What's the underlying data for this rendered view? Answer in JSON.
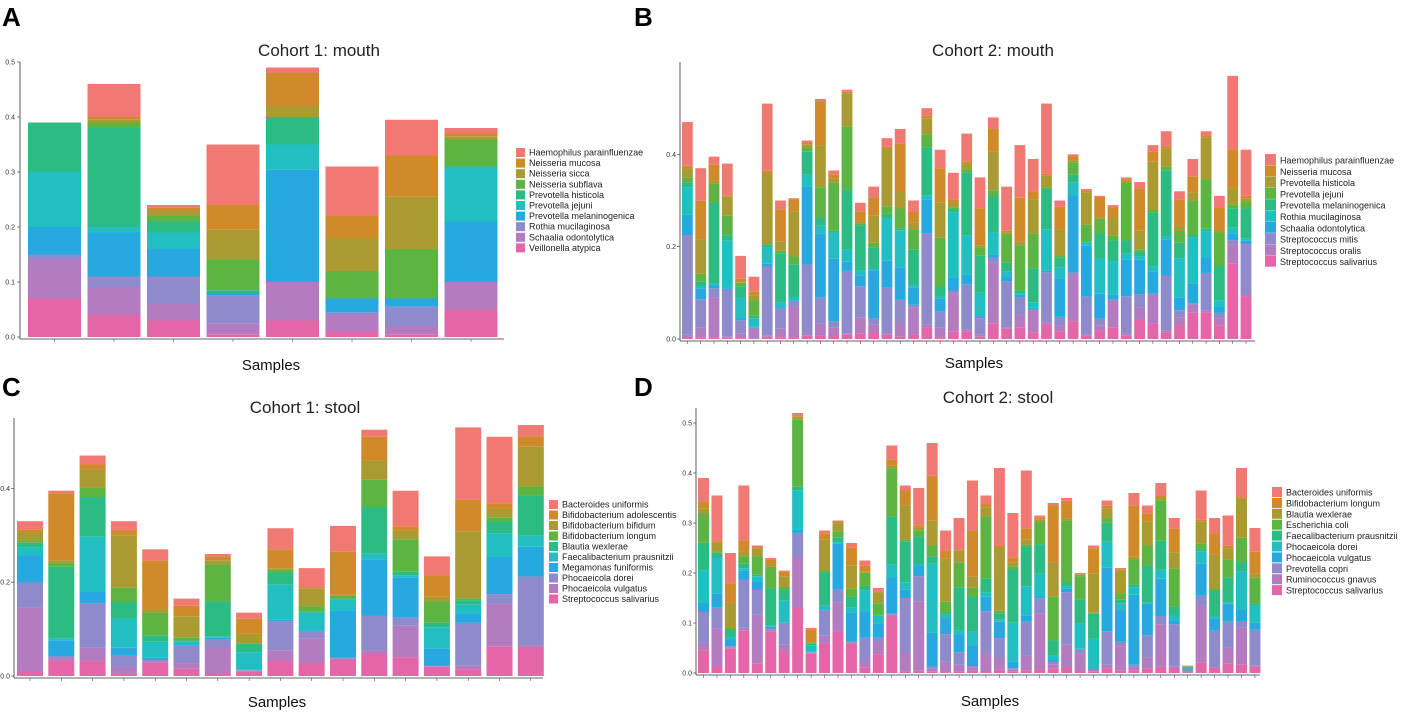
{
  "colors": {
    "c_red": "#F07A73",
    "c_orange": "#D08A2A",
    "c_olive": "#A99A32",
    "c_green": "#5CB443",
    "c_teal": "#2DBB84",
    "c_cyan": "#22BFC2",
    "c_blue": "#27A8DF",
    "c_purple": "#8F8ACB",
    "c_mauve": "#B37CC0",
    "c_pink": "#E466A9"
  },
  "chart_data": [
    {
      "panel": "A",
      "type": "stacked-bar",
      "title": "Cohort  1: mouth",
      "xlabel": "Samples",
      "ylim": [
        0,
        0.5
      ],
      "yticks": [
        0.0,
        0.1,
        0.2,
        0.3,
        0.4,
        0.5
      ],
      "ytick_labels": [
        "0.0",
        "0.1",
        "0.2",
        "0.3",
        "0.4",
        "0.5"
      ],
      "legend": [
        "Haemophilus parainfluenzae",
        "Neisseria mucosa",
        "Neisseria sicca",
        "Neisseria subflava",
        "Prevotella histicola",
        "Prevotella jejuni",
        "Prevotella melaninogenica",
        "Rothia mucilaginosa",
        "Schaalia odontolytica",
        "Veillonella atypica"
      ],
      "legend_colors": [
        "#F07A73",
        "#D08A2A",
        "#A99A32",
        "#5CB443",
        "#2DBB84",
        "#22BFC2",
        "#27A8DF",
        "#8F8ACB",
        "#B37CC0",
        "#E466A9"
      ],
      "series_order": [
        "Veillonella atypica",
        "Schaalia odontolytica",
        "Rothia mucilaginosa",
        "Prevotella melaninogenica",
        "Prevotella jejuni",
        "Prevotella histicola",
        "Neisseria subflava",
        "Neisseria sicca",
        "Neisseria mucosa",
        "Haemophilus parainfluenzae"
      ],
      "series_colors": [
        "#E466A9",
        "#B37CC0",
        "#8F8ACB",
        "#27A8DF",
        "#22BFC2",
        "#2DBB84",
        "#5CB443",
        "#A99A32",
        "#D08A2A",
        "#F07A73"
      ],
      "bars": [
        [
          0.07,
          0.07,
          0.01,
          0.05,
          0.1,
          0.09,
          0,
          0,
          0,
          0
        ],
        [
          0.04,
          0.05,
          0.02,
          0.08,
          0.01,
          0.18,
          0.01,
          0.005,
          0.005,
          0.06
        ],
        [
          0.03,
          0.03,
          0.05,
          0.05,
          0.03,
          0.02,
          0.01,
          0.01,
          0.005,
          0.005
        ],
        [
          0.005,
          0.02,
          0.05,
          0.005,
          0,
          0.005,
          0.055,
          0.055,
          0.045,
          0.11
        ],
        [
          0.03,
          0.07,
          0,
          0.205,
          0.045,
          0.05,
          0,
          0.02,
          0.06,
          0.01
        ],
        [
          0.01,
          0.03,
          0.005,
          0.025,
          0,
          0,
          0.05,
          0.06,
          0.04,
          0.09
        ],
        [
          0.005,
          0.015,
          0.035,
          0.015,
          0,
          0,
          0.09,
          0.095,
          0.075,
          0.065
        ],
        [
          0.05,
          0.05,
          0,
          0.11,
          0.1,
          0,
          0.05,
          0.005,
          0.005,
          0.01
        ]
      ]
    },
    {
      "panel": "B",
      "type": "stacked-bar",
      "title": "Cohort  2: mouth",
      "xlabel": "Samples",
      "ylim": [
        0,
        0.6
      ],
      "yticks": [
        0.0,
        0.2,
        0.4
      ],
      "ytick_labels": [
        "0.0",
        "0.2",
        "0.4"
      ],
      "legend": [
        "Haemophilus parainfluenzae",
        "Neisseria mucosa",
        "Prevotella histicola",
        "Prevotella jejuni",
        "Prevotella melaninogenica",
        "Rothia mucilaginosa",
        "Schaalia odontolytica",
        "Streptococcus mitis",
        "Streptococcus oralis",
        "Streptococcus salivarius"
      ],
      "legend_colors": [
        "#F07A73",
        "#D08A2A",
        "#A99A32",
        "#5CB443",
        "#2DBB84",
        "#22BFC2",
        "#27A8DF",
        "#8F8ACB",
        "#B37CC0",
        "#E466A9"
      ],
      "series_colors": [
        "#E466A9",
        "#B37CC0",
        "#8F8ACB",
        "#27A8DF",
        "#22BFC2",
        "#2DBB84",
        "#5CB443",
        "#A99A32",
        "#D08A2A",
        "#F07A73"
      ],
      "totals": [
        0.47,
        0.37,
        0.395,
        0.38,
        0.18,
        0.135,
        0.51,
        0.3,
        0.305,
        0.43,
        0.52,
        0.365,
        0.54,
        0.295,
        0.33,
        0.435,
        0.455,
        0.3,
        0.5,
        0.41,
        0.36,
        0.445,
        0.35,
        0.48,
        0.33,
        0.42,
        0.39,
        0.51,
        0.3,
        0.4,
        0.325,
        0.31,
        0.29,
        0.35,
        0.34,
        0.42,
        0.45,
        0.32,
        0.39,
        0.45,
        0.31,
        0.57,
        0.41
      ]
    },
    {
      "panel": "C",
      "type": "stacked-bar",
      "title": "Cohort  1: stool",
      "xlabel": "Samples",
      "ylim": [
        0,
        0.55
      ],
      "yticks": [
        0.0,
        0.2,
        0.4
      ],
      "ytick_labels": [
        "0.0",
        "0.2",
        "0.4"
      ],
      "legend": [
        "Bacteroides uniformis",
        "Bifidobacterium adolescentis",
        "Bifidobacterium bifidum",
        "Bifidobacterium longum",
        "Blautia wexlerae",
        "Faecalibacterium prausnitzii",
        "Megamonas funiformis",
        "Phocaeicola dorei",
        "Phocaeicola vulgatus",
        "Streptococcus salivarius"
      ],
      "legend_colors": [
        "#F07A73",
        "#D08A2A",
        "#A99A32",
        "#5CB443",
        "#2DBB84",
        "#22BFC2",
        "#27A8DF",
        "#8F8ACB",
        "#B37CC0",
        "#E466A9"
      ],
      "series_colors": [
        "#E466A9",
        "#B37CC0",
        "#8F8ACB",
        "#27A8DF",
        "#22BFC2",
        "#2DBB84",
        "#5CB443",
        "#A99A32",
        "#D08A2A",
        "#F07A73"
      ],
      "totals": [
        0.33,
        0.395,
        0.47,
        0.33,
        0.27,
        0.165,
        0.26,
        0.135,
        0.315,
        0.23,
        0.32,
        0.525,
        0.395,
        0.255,
        0.53,
        0.51,
        0.535
      ]
    },
    {
      "panel": "D",
      "type": "stacked-bar",
      "title": "Cohort  2: stool",
      "xlabel": "Samples",
      "ylim": [
        0,
        0.53
      ],
      "yticks": [
        0.0,
        0.1,
        0.2,
        0.3,
        0.4,
        0.5
      ],
      "ytick_labels": [
        "0.0",
        "0.1",
        "0.2",
        "0.3",
        "0.4",
        "0.5"
      ],
      "legend": [
        "Bacteroides uniformis",
        "Bifidobacterium longum",
        "Blautia wexlerae",
        "Escherichia coli",
        "Faecalibacterium prausnitzii",
        "Phocaeicola dorei",
        "Phocaeicola vulgatus",
        "Prevotella copri",
        "Ruminococcus gnavus",
        "Streptococcus salivarius"
      ],
      "legend_colors": [
        "#F07A73",
        "#D08A2A",
        "#A99A32",
        "#5CB443",
        "#2DBB84",
        "#22BFC2",
        "#27A8DF",
        "#8F8ACB",
        "#B37CC0",
        "#E466A9"
      ],
      "series_colors": [
        "#E466A9",
        "#B37CC0",
        "#8F8ACB",
        "#27A8DF",
        "#22BFC2",
        "#2DBB84",
        "#5CB443",
        "#A99A32",
        "#D08A2A",
        "#F07A73"
      ],
      "totals": [
        0.39,
        0.355,
        0.24,
        0.375,
        0.255,
        0.23,
        0.205,
        0.52,
        0.09,
        0.285,
        0.305,
        0.26,
        0.225,
        0.17,
        0.455,
        0.375,
        0.37,
        0.46,
        0.285,
        0.31,
        0.385,
        0.355,
        0.41,
        0.32,
        0.405,
        0.315,
        0.34,
        0.35,
        0.2,
        0.255,
        0.345,
        0.21,
        0.36,
        0.335,
        0.38,
        0.31,
        0.015,
        0.365,
        0.31,
        0.315,
        0.41,
        0.29
      ]
    }
  ]
}
